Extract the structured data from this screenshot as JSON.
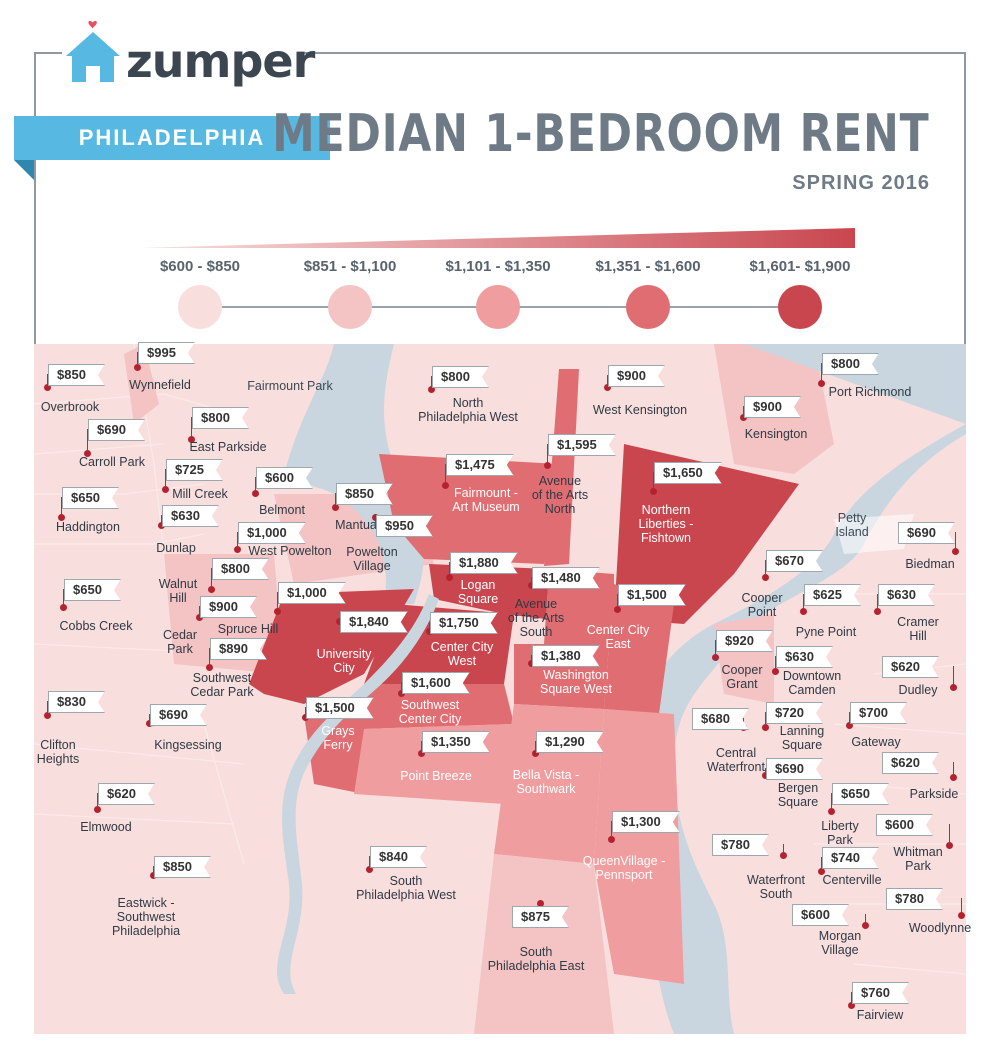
{
  "brand": {
    "name": "zumper"
  },
  "city": "PHILADELPHIA",
  "title": "MEDIAN 1-BEDROOM RENT",
  "subtitle": "SPRING 2016",
  "colors": {
    "tier1": "#f8dedd",
    "tier2": "#f4c3c3",
    "tier3": "#ef9d9f",
    "tier4": "#e06d72",
    "tier5": "#c9464f",
    "water": "#c9d6df",
    "brand_blue": "#57b8e2"
  },
  "legend": [
    {
      "label": "$600 - $850",
      "color": "#f8dedd"
    },
    {
      "label": "$851 - $1,100",
      "color": "#f4c3c3"
    },
    {
      "label": "$1,101 - $1,350",
      "color": "#ef9d9f"
    },
    {
      "label": "$1,351 - $1,600",
      "color": "#e06d72"
    },
    {
      "label": "$1,601- $1,900",
      "color": "#c9464f"
    }
  ],
  "water_labels": [
    "Fairmount Park",
    "Petty\nIsland"
  ],
  "neighborhoods": [
    {
      "name": "Overbrook",
      "price": "$850"
    },
    {
      "name": "Wynnefield",
      "price": "$995"
    },
    {
      "name": "North\nPhiladelphia West",
      "price": "$800"
    },
    {
      "name": "West Kensington",
      "price": "$900"
    },
    {
      "name": "Port Richmond",
      "price": "$800"
    },
    {
      "name": "East Parkside",
      "price": "$800"
    },
    {
      "name": "Carroll Park",
      "price": "$690"
    },
    {
      "name": "Kensington",
      "price": "$900"
    },
    {
      "name": "Avenue\nof the Arts\nNorth",
      "price": "$1,595"
    },
    {
      "name": "Fairmount -\nArt Museum",
      "price": "$1,475"
    },
    {
      "name": "Mill Creek",
      "price": "$725"
    },
    {
      "name": "Belmont",
      "price": "$600"
    },
    {
      "name": "Northern\nLiberties -\nFishtown",
      "price": "$1,650"
    },
    {
      "name": "Haddington",
      "price": "$650"
    },
    {
      "name": "Mantua",
      "price": "$850"
    },
    {
      "name": "Dunlap",
      "price": "$630"
    },
    {
      "name": "West Powelton",
      "price": "$1,000"
    },
    {
      "name": "Powelton\nVillage",
      "price": "$950"
    },
    {
      "name": "Biedman",
      "price": "$690"
    },
    {
      "name": "Logan\nSquare",
      "price": "$1,880"
    },
    {
      "name": "Cooper\nPoint",
      "price": "$670"
    },
    {
      "name": "Walnut\nHill",
      "price": "$800"
    },
    {
      "name": "Avenue\nof the Arts\nSouth",
      "price": "$1,480"
    },
    {
      "name": "Cobbs Creek",
      "price": "$650"
    },
    {
      "name": "Spruce Hill",
      "price": "$1,000"
    },
    {
      "name": "Center City\nEast",
      "price": "$1,500"
    },
    {
      "name": "Pyne Point",
      "price": "$625"
    },
    {
      "name": "Cramer\nHill",
      "price": "$630"
    },
    {
      "name": "Cedar\nPark",
      "price": "$900"
    },
    {
      "name": "University\nCity",
      "price": "$1,840"
    },
    {
      "name": "Center City\nWest",
      "price": "$1,750"
    },
    {
      "name": "Southwest\nCedar Park",
      "price": "$890"
    },
    {
      "name": "Washington\nSquare West",
      "price": "$1,380"
    },
    {
      "name": "Cooper\nGrant",
      "price": "$920"
    },
    {
      "name": "Downtown\nCamden",
      "price": "$630"
    },
    {
      "name": "Dudley",
      "price": "$620"
    },
    {
      "name": "Southwest\nCenter City",
      "price": "$1,600"
    },
    {
      "name": "Clifton\nHeights",
      "price": "$830"
    },
    {
      "name": "Grays\nFerry",
      "price": "$1,500"
    },
    {
      "name": "Kingsessing",
      "price": "$690"
    },
    {
      "name": "Central\nWaterfront",
      "price": "$680"
    },
    {
      "name": "Lanning\nSquare",
      "price": "$720"
    },
    {
      "name": "Gateway",
      "price": "$700"
    },
    {
      "name": "Point Breeze",
      "price": "$1,350"
    },
    {
      "name": "Bella Vista -\nSouthwark",
      "price": "$1,290"
    },
    {
      "name": "Bergen\nSquare",
      "price": "$690"
    },
    {
      "name": "Parkside",
      "price": "$620"
    },
    {
      "name": "Elmwood",
      "price": "$620"
    },
    {
      "name": "Liberty\nPark",
      "price": "$650"
    },
    {
      "name": "Whitman\nPark",
      "price": "$600"
    },
    {
      "name": "QueenVillage -\nPennsport",
      "price": "$1,300"
    },
    {
      "name": "Waterfront\nSouth",
      "price": "$780"
    },
    {
      "name": "South\nPhiladelphia West",
      "price": "$840"
    },
    {
      "name": "Centerville",
      "price": "$740"
    },
    {
      "name": "Eastwick -\nSouthwest\nPhiladelphia",
      "price": "$850"
    },
    {
      "name": "Woodlynne",
      "price": "$780"
    },
    {
      "name": "Morgan\nVillage",
      "price": "$600"
    },
    {
      "name": "South\nPhiladelphia East",
      "price": "$875"
    },
    {
      "name": "Fairview",
      "price": "$760"
    }
  ]
}
